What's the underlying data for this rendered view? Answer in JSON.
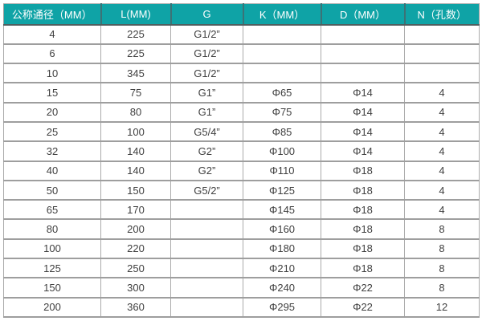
{
  "colors": {
    "header_bg": "#0fa3a6",
    "header_text": "#ffffff",
    "header_divider": "#3c7276",
    "grid_line": "#9e9e9e",
    "body_text": "#404040",
    "row_bg": "#ffffff"
  },
  "chart_data": {
    "type": "table",
    "title": "",
    "columns": [
      "公称通径（MM）",
      "L(MM)",
      "G",
      "K（MM）",
      "D（MM）",
      "N（孔数）"
    ],
    "rows": [
      [
        "4",
        "225",
        "G1/2”",
        "",
        "",
        ""
      ],
      [
        "6",
        "225",
        "G1/2”",
        "",
        "",
        ""
      ],
      [
        "10",
        "345",
        "G1/2”",
        "",
        "",
        ""
      ],
      [
        "15",
        "75",
        "G1”",
        "Φ65",
        "Φ14",
        "4"
      ],
      [
        "20",
        "80",
        "G1”",
        "Φ75",
        "Φ14",
        "4"
      ],
      [
        "25",
        "100",
        "G5/4”",
        "Φ85",
        "Φ14",
        "4"
      ],
      [
        "32",
        "140",
        "G2”",
        "Φ100",
        "Φ14",
        "4"
      ],
      [
        "40",
        "140",
        "G2”",
        "Φ110",
        "Φ18",
        "4"
      ],
      [
        "50",
        "150",
        "G5/2”",
        "Φ125",
        "Φ18",
        "4"
      ],
      [
        "65",
        "170",
        "",
        "Φ145",
        "Φ18",
        "4"
      ],
      [
        "80",
        "200",
        "",
        "Φ160",
        "Φ18",
        "8"
      ],
      [
        "100",
        "220",
        "",
        "Φ180",
        "Φ18",
        "8"
      ],
      [
        "125",
        "250",
        "",
        "Φ210",
        "Φ18",
        "8"
      ],
      [
        "150",
        "300",
        "",
        "Φ240",
        "Φ22",
        "8"
      ],
      [
        "200",
        "360",
        "",
        "Φ295",
        "Φ22",
        "12"
      ]
    ]
  }
}
